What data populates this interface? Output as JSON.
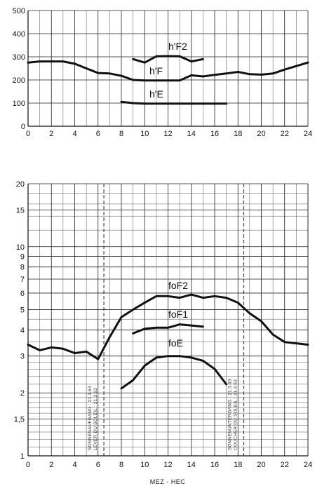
{
  "chart_data": [
    {
      "type": "line",
      "title": "",
      "xlabel": "",
      "ylabel": "",
      "xlim": [
        0,
        24
      ],
      "ylim": [
        0,
        500
      ],
      "yscale": "linear",
      "grid": true,
      "x_ticks": [
        "0",
        "2",
        "4",
        "6",
        "8",
        "10",
        "12",
        "14",
        "16",
        "18",
        "20",
        "22",
        "24"
      ],
      "y_ticks": [
        "0",
        "100",
        "200",
        "300",
        "400",
        "500"
      ],
      "series": [
        {
          "name": "h'F2",
          "x": [
            9,
            10,
            11,
            12,
            13,
            14,
            15
          ],
          "y": [
            290,
            275,
            302,
            303,
            302,
            280,
            290
          ]
        },
        {
          "name": "h'F",
          "x": [
            0,
            1,
            2,
            3,
            4,
            5,
            6,
            7,
            8,
            9,
            10,
            11,
            12,
            13,
            14,
            15,
            16,
            17,
            18,
            19,
            20,
            21,
            22,
            23,
            24
          ],
          "y": [
            275,
            280,
            280,
            280,
            270,
            250,
            230,
            228,
            218,
            200,
            198,
            198,
            198,
            198,
            220,
            215,
            222,
            228,
            235,
            225,
            223,
            228,
            245,
            260,
            275
          ]
        },
        {
          "name": "h'E",
          "x": [
            8,
            9,
            10,
            12,
            14,
            16,
            17
          ],
          "y": [
            105,
            100,
            98,
            98,
            98,
            98,
            98
          ]
        }
      ],
      "labels": [
        "h'F2",
        "h'F",
        "h'E"
      ]
    },
    {
      "type": "line",
      "title": "",
      "xlabel": "MEZ - HEC",
      "ylabel": "",
      "xlim": [
        0,
        24
      ],
      "ylim": [
        1,
        20
      ],
      "yscale": "log",
      "grid": true,
      "x_ticks": [
        "0",
        "2",
        "4",
        "6",
        "8",
        "10",
        "12",
        "14",
        "16",
        "18",
        "20",
        "22",
        "24"
      ],
      "y_ticks": [
        {
          "label": "1",
          "v": 1
        },
        {
          "label": "1,5",
          "v": 1.5
        },
        {
          "label": "2",
          "v": 2
        },
        {
          "label": "3",
          "v": 3
        },
        {
          "label": "4",
          "v": 4
        },
        {
          "label": "5",
          "v": 5
        },
        {
          "label": "6",
          "v": 6
        },
        {
          "label": "7",
          "v": 7
        },
        {
          "label": "8",
          "v": 8
        },
        {
          "label": "9",
          "v": 9
        },
        {
          "label": "10",
          "v": 10
        },
        {
          "label": "15",
          "v": 15
        },
        {
          "label": "20",
          "v": 20
        }
      ],
      "series": [
        {
          "name": "foF2",
          "x": [
            0,
            1,
            2,
            3,
            4,
            5,
            6,
            7,
            8,
            9,
            10,
            11,
            12,
            13,
            14,
            15,
            16,
            17,
            18,
            19,
            20,
            21,
            22,
            23,
            24
          ],
          "y": [
            3.4,
            3.2,
            3.3,
            3.25,
            3.1,
            3.15,
            2.9,
            3.7,
            4.6,
            5.0,
            5.4,
            5.8,
            5.8,
            5.7,
            5.9,
            5.7,
            5.8,
            5.7,
            5.4,
            4.8,
            4.4,
            3.8,
            3.5,
            3.45,
            3.4
          ]
        },
        {
          "name": "foF1",
          "x": [
            9,
            10,
            11,
            12,
            13,
            14,
            15
          ],
          "y": [
            3.85,
            4.05,
            4.1,
            4.1,
            4.25,
            4.2,
            4.15
          ]
        },
        {
          "name": "foE",
          "x": [
            8,
            9,
            10,
            11,
            12,
            13,
            14,
            15,
            16,
            17
          ],
          "y": [
            2.1,
            2.3,
            2.7,
            2.95,
            3.0,
            3.0,
            2.95,
            2.85,
            2.6,
            2.2
          ]
        }
      ],
      "labels": [
        "foF2",
        "foF1",
        "foE"
      ],
      "events": [
        {
          "x": 6.5,
          "lines": [
            "SONNENAUFGANG : 21.3.63",
            "LEVER DU SOLEIL : 21.3.63"
          ]
        },
        {
          "x": 18.5,
          "lines": [
            "SONNENUNTERGANG : 21.3.63",
            "COUCHER DU SOLEIL : 21.3.63"
          ]
        }
      ]
    }
  ]
}
